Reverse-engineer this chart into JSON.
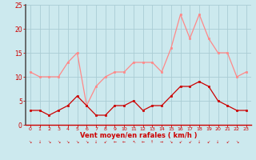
{
  "hours": [
    0,
    1,
    2,
    3,
    4,
    5,
    6,
    7,
    8,
    9,
    10,
    11,
    12,
    13,
    14,
    15,
    16,
    17,
    18,
    19,
    20,
    21,
    22,
    23
  ],
  "wind_avg": [
    3,
    3,
    2,
    3,
    4,
    6,
    4,
    2,
    2,
    4,
    4,
    5,
    3,
    4,
    4,
    6,
    8,
    8,
    9,
    8,
    5,
    4,
    3,
    3
  ],
  "wind_gust": [
    11,
    10,
    10,
    10,
    13,
    15,
    4,
    8,
    10,
    11,
    11,
    13,
    13,
    13,
    11,
    16,
    23,
    18,
    23,
    18,
    15,
    15,
    10,
    11
  ],
  "bg_color": "#cce9ee",
  "grid_color": "#aacdd4",
  "avg_color": "#cc0000",
  "gust_color": "#ff8888",
  "xlabel": "Vent moyen/en rafales ( km/h )",
  "xlabel_color": "#cc0000",
  "tick_color": "#cc0000",
  "spine_left_color": "#555555",
  "spine_bottom_color": "#cc0000",
  "ylim": [
    0,
    25
  ],
  "yticks": [
    0,
    5,
    10,
    15,
    20,
    25
  ],
  "xlim": [
    -0.5,
    23.5
  ]
}
